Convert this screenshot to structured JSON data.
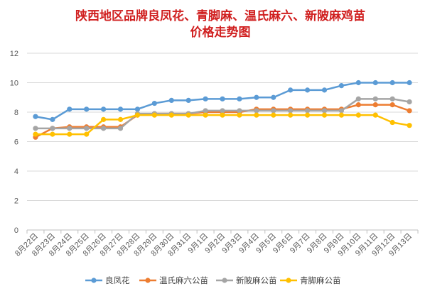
{
  "chart_data": {
    "type": "line",
    "title_lines": [
      "陕西地区品牌良凤花、青脚麻、温氏麻六、新陂麻鸡苗",
      "价格走势图"
    ],
    "xlabel": "",
    "ylabel": "",
    "ylim": [
      0,
      12
    ],
    "yticks": [
      0,
      2,
      4,
      6,
      8,
      10,
      12
    ],
    "grid": true,
    "legend_position": "bottom",
    "categories": [
      "8月22日",
      "8月23日",
      "8月24日",
      "8月25日",
      "8月26日",
      "8月27日",
      "8月28日",
      "8月29日",
      "8月30日",
      "8月31日",
      "9月1日",
      "9月2日",
      "9月3日",
      "9月4日",
      "9月5日",
      "9月6日",
      "9月7日",
      "9月8日",
      "9月9日",
      "9月10日",
      "9月11日",
      "9月12日",
      "9月13日"
    ],
    "series": [
      {
        "name": "良凤花",
        "color": "#5b9bd5",
        "values": [
          7.7,
          7.5,
          8.2,
          8.2,
          8.2,
          8.2,
          8.2,
          8.6,
          8.8,
          8.8,
          8.9,
          8.9,
          8.9,
          9.0,
          9.0,
          9.5,
          9.5,
          9.5,
          9.8,
          10.0,
          10.0,
          10.0,
          10.0
        ]
      },
      {
        "name": "温氏麻六公苗",
        "color": "#ed7d31",
        "values": [
          6.3,
          6.9,
          7.0,
          7.0,
          7.0,
          7.0,
          7.8,
          7.9,
          7.9,
          7.9,
          8.0,
          8.0,
          8.0,
          8.2,
          8.2,
          8.2,
          8.2,
          8.2,
          8.2,
          8.5,
          8.5,
          8.5,
          8.1
        ]
      },
      {
        "name": "新陂麻公苗",
        "color": "#a5a5a5",
        "values": [
          6.9,
          6.9,
          6.9,
          6.9,
          6.9,
          6.9,
          7.9,
          7.9,
          7.9,
          7.9,
          8.1,
          8.1,
          8.1,
          8.1,
          8.1,
          8.1,
          8.1,
          8.1,
          8.1,
          8.9,
          8.9,
          8.9,
          8.7
        ]
      },
      {
        "name": "青脚麻公苗",
        "color": "#ffc000",
        "values": [
          6.5,
          6.5,
          6.5,
          6.5,
          7.5,
          7.5,
          7.8,
          7.8,
          7.8,
          7.8,
          7.8,
          7.8,
          7.8,
          7.8,
          7.8,
          7.8,
          7.8,
          7.8,
          7.8,
          7.8,
          7.8,
          7.3,
          7.1
        ]
      }
    ]
  }
}
